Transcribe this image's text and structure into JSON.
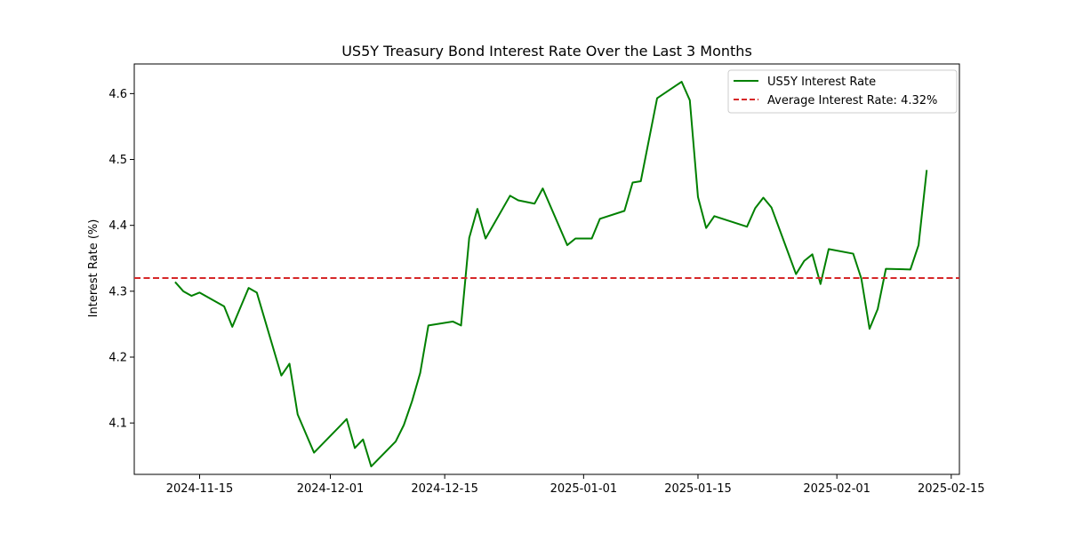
{
  "chart_data": {
    "type": "line",
    "title": "US5Y Treasury Bond Interest Rate Over the Last 3 Months",
    "xlabel": "",
    "ylabel": "Interest Rate (%)",
    "x_axis_type": "date",
    "xlim": [
      "2024-11-07",
      "2025-02-16"
    ],
    "ylim": [
      4.022,
      4.645
    ],
    "x_ticks": [
      "2024-11-15",
      "2024-12-01",
      "2024-12-15",
      "2025-01-01",
      "2025-01-15",
      "2025-02-01",
      "2025-02-15"
    ],
    "y_ticks": [
      4.1,
      4.2,
      4.3,
      4.4,
      4.5,
      4.6
    ],
    "y_tick_labels": [
      "4.1",
      "4.2",
      "4.3",
      "4.4",
      "4.5",
      "4.6"
    ],
    "grid": false,
    "legend_position": "top-right",
    "series": [
      {
        "name": "US5Y Interest Rate",
        "color": "#008000",
        "style": "solid",
        "x": [
          "2024-11-12",
          "2024-11-13",
          "2024-11-14",
          "2024-11-15",
          "2024-11-18",
          "2024-11-19",
          "2024-11-21",
          "2024-11-22",
          "2024-11-25",
          "2024-11-26",
          "2024-11-27",
          "2024-11-29",
          "2024-12-02",
          "2024-12-03",
          "2024-12-04",
          "2024-12-05",
          "2024-12-06",
          "2024-12-09",
          "2024-12-10",
          "2024-12-11",
          "2024-12-12",
          "2024-12-13",
          "2024-12-16",
          "2024-12-17",
          "2024-12-18",
          "2024-12-19",
          "2024-12-20",
          "2024-12-23",
          "2024-12-24",
          "2024-12-26",
          "2024-12-27",
          "2024-12-30",
          "2024-12-31",
          "2025-01-02",
          "2025-01-03",
          "2025-01-06",
          "2025-01-07",
          "2025-01-08",
          "2025-01-10",
          "2025-01-13",
          "2025-01-14",
          "2025-01-15",
          "2025-01-16",
          "2025-01-17",
          "2025-01-21",
          "2025-01-22",
          "2025-01-23",
          "2025-01-24",
          "2025-01-27",
          "2025-01-28",
          "2025-01-29",
          "2025-01-30",
          "2025-01-31",
          "2025-02-03",
          "2025-02-04",
          "2025-02-05",
          "2025-02-06",
          "2025-02-07",
          "2025-02-10",
          "2025-02-11",
          "2025-02-12"
        ],
        "values": [
          4.314,
          4.3,
          4.293,
          4.298,
          4.277,
          4.246,
          4.305,
          4.298,
          4.172,
          4.19,
          4.113,
          4.055,
          4.093,
          4.106,
          4.062,
          4.075,
          4.034,
          4.072,
          4.097,
          4.133,
          4.176,
          4.248,
          4.254,
          4.248,
          4.381,
          4.425,
          4.38,
          4.445,
          4.438,
          4.433,
          4.456,
          4.37,
          4.38,
          4.38,
          4.41,
          4.422,
          4.465,
          4.467,
          4.593,
          4.618,
          4.59,
          4.443,
          4.396,
          4.414,
          4.398,
          4.426,
          4.442,
          4.427,
          4.326,
          4.346,
          4.356,
          4.311,
          4.364,
          4.357,
          4.319,
          4.243,
          4.273,
          4.334,
          4.333,
          4.37,
          4.484
        ]
      },
      {
        "name": "Average Interest Rate: 4.32%",
        "color": "#d62728",
        "style": "dashed",
        "value": 4.32
      }
    ]
  }
}
